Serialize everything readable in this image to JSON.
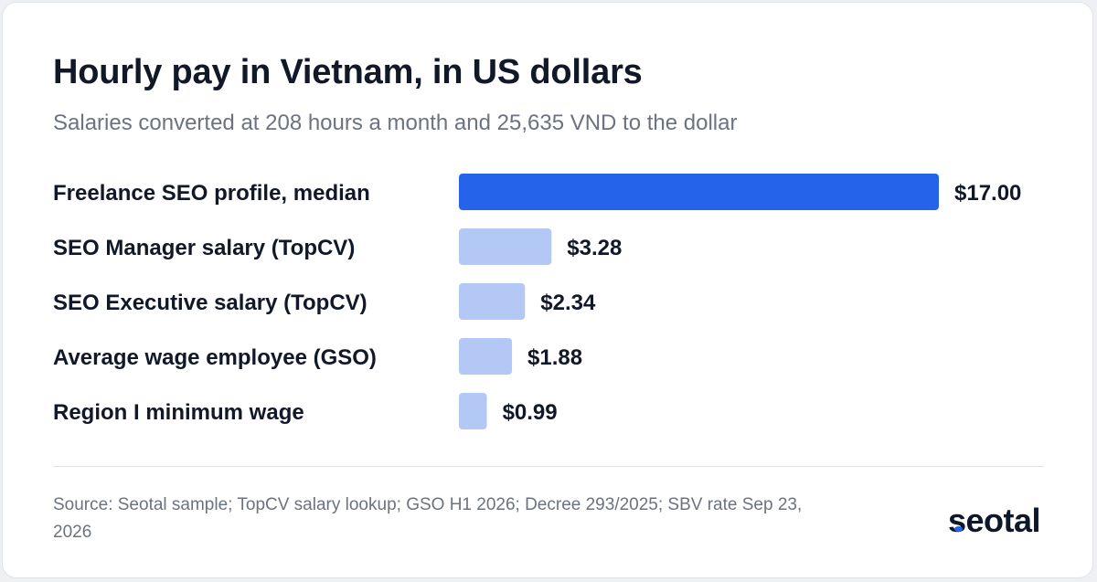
{
  "header": {
    "title": "Hourly pay in Vietnam, in US dollars",
    "subtitle": "Salaries converted at 208 hours a month and 25,635 VND to the dollar"
  },
  "chart_data": {
    "type": "bar",
    "orientation": "horizontal",
    "title": "Hourly pay in Vietnam, in US dollars",
    "subtitle": "Salaries converted at 208 hours a month and 25,635 VND to the dollar",
    "categories": [
      "Freelance SEO profile, median",
      "SEO Manager salary (TopCV)",
      "SEO Executive salary (TopCV)",
      "Average wage employee (GSO)",
      "Region I minimum wage"
    ],
    "values": [
      17.0,
      3.28,
      2.34,
      1.88,
      0.99
    ],
    "value_labels": [
      "$17.00",
      "$3.28",
      "$2.34",
      "$1.88",
      "$0.99"
    ],
    "unit": "US dollars per hour",
    "xlim": [
      0,
      17
    ],
    "grid": false,
    "legend": "none",
    "colors": {
      "highlight": "#2563eb",
      "default": "#b4c8f5"
    },
    "highlight_index": 0
  },
  "footer": {
    "source": "Source: Seotal sample; TopCV salary lookup; GSO H1 2026; Decree 293/2025; SBV rate Sep 23, 2026",
    "logo_text": "seotal"
  }
}
